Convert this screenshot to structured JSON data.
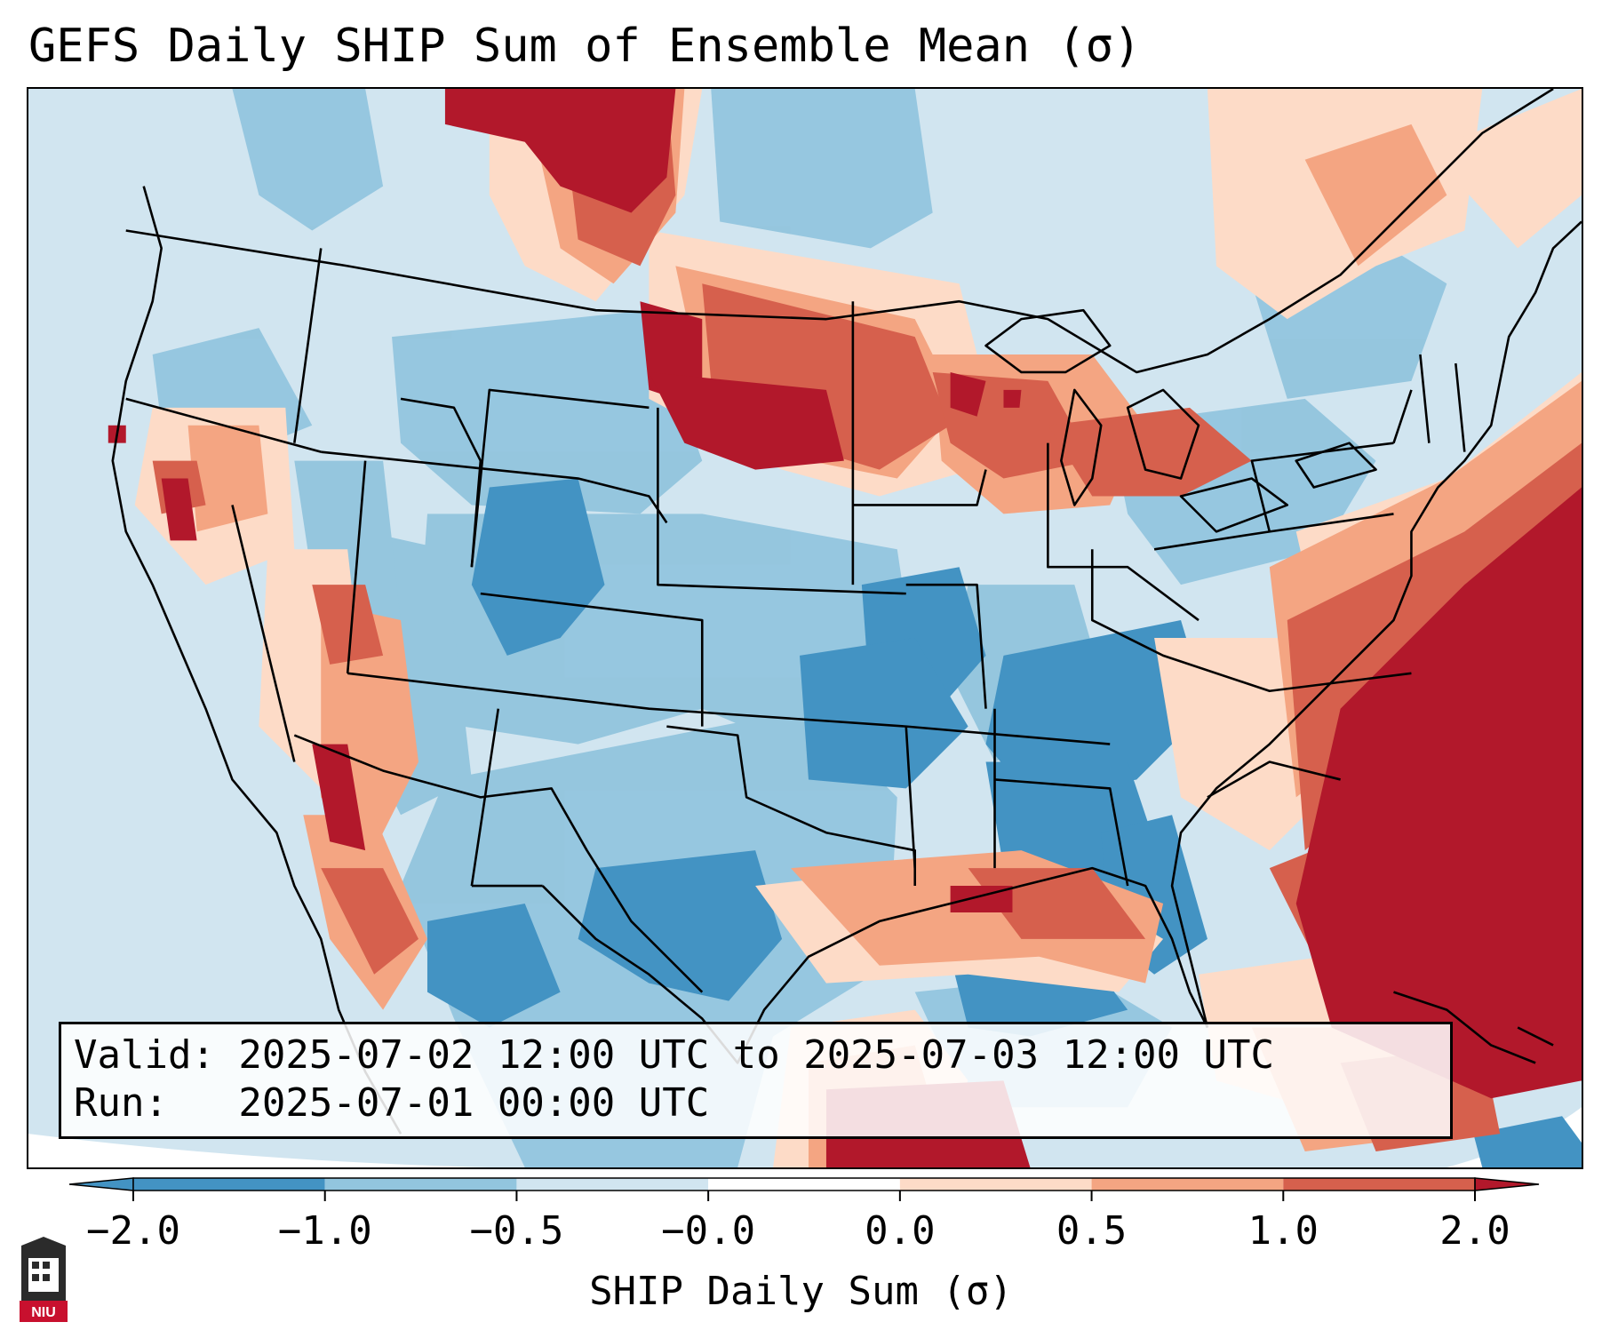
{
  "title": "GEFS Daily SHIP Sum of Ensemble Mean (σ)",
  "info": {
    "valid_line": "Valid: 2025-07-02 12:00 UTC to 2025-07-03 12:00 UTC",
    "run_line": "Run:   2025-07-01 00:00 UTC"
  },
  "colorbar": {
    "label": "SHIP Daily Sum (σ)",
    "ticks": [
      "−2.0",
      "−1.0",
      "−0.5",
      "−0.0",
      "0.0",
      "0.5",
      "1.0",
      "2.0"
    ],
    "colors": [
      "#4393c3",
      "#92c5de",
      "#d1e5f0",
      "#ffffff",
      "#fddbc7",
      "#f4a582",
      "#d6604d",
      "#b2182b"
    ],
    "extend": "both"
  },
  "legend_colors": {
    "strong_negative": "#4393c3",
    "negative": "#92c5de",
    "weak_negative": "#d1e5f0",
    "neutral": "#ffffff",
    "weak_positive": "#fddbc7",
    "positive": "#f4a582",
    "strong_positive": "#d6604d",
    "very_strong_positive": "#b2182b"
  },
  "logo": {
    "name": "NIU logo",
    "text": "NIU"
  }
}
